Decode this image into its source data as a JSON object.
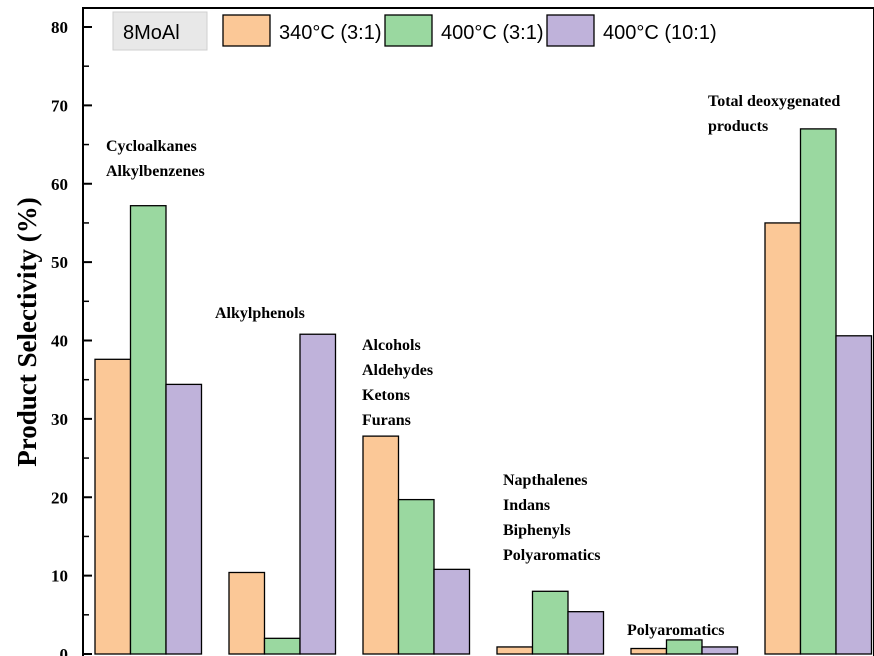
{
  "chart_data": {
    "type": "bar",
    "ylabel": "Product Selectivity (%)",
    "xlabel": "",
    "ylim": [
      0,
      80
    ],
    "yticks": [
      0,
      10,
      20,
      30,
      40,
      50,
      60,
      70,
      80
    ],
    "legend_position": "top",
    "legend_title": "8MoAl",
    "categories": [
      "Cycloalkanes Alkylbenzenes",
      "Alkylphenols",
      "Alcohols Aldehydes Ketons Furans",
      "Napthalenes Indans Biphenyls Polyaromatics",
      "Polyaromatics",
      "Total deoxygenated products"
    ],
    "category_label_lines": [
      [
        "Cycloalkanes",
        "Alkylbenzenes"
      ],
      [
        "Alkylphenols"
      ],
      [
        "Alcohols",
        "Aldehydes",
        "Ketons",
        "Furans"
      ],
      [
        "Napthalenes",
        "Indans",
        "Biphenyls",
        "Polyaromatics"
      ],
      [
        "Polyaromatics"
      ],
      [
        "Total deoxygenated",
        "products"
      ]
    ],
    "series": [
      {
        "name": "340°C (3:1)",
        "color": "#FBC897",
        "values": [
          37.6,
          10.4,
          27.8,
          0.9,
          0.7,
          55.0
        ]
      },
      {
        "name": "400°C (3:1)",
        "color": "#9AD8A0",
        "values": [
          57.2,
          2.0,
          19.7,
          8.0,
          1.8,
          67.0
        ]
      },
      {
        "name": "400°C (10:1)",
        "color": "#BFB2DA",
        "values": [
          34.4,
          40.8,
          10.8,
          5.4,
          0.9,
          40.6
        ]
      }
    ]
  }
}
